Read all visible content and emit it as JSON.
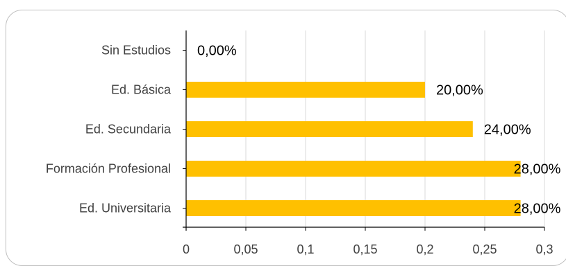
{
  "chart_data": {
    "type": "bar",
    "orientation": "horizontal",
    "categories": [
      "Sin Estudios",
      "Ed. Básica",
      "Ed. Secundaria",
      "Formación Profesional",
      "Ed. Universitaria"
    ],
    "values": [
      0,
      0.2,
      0.24,
      0.28,
      0.28
    ],
    "data_labels": [
      "0,00%",
      "20,00%",
      "24,00%",
      "28,00%",
      "28,00%"
    ],
    "xlim": [
      0,
      0.3
    ],
    "xticks": [
      0,
      0.05,
      0.1,
      0.15,
      0.2,
      0.25,
      0.3
    ],
    "xtick_labels": [
      "0",
      "0,05",
      "0,1",
      "0,15",
      "0,2",
      "0,25",
      "0,3"
    ],
    "grid": "vertical",
    "legend": "none",
    "colors": {
      "bar": "#FFC000",
      "grid": "#d9d9d9",
      "axis": "#000000"
    }
  }
}
